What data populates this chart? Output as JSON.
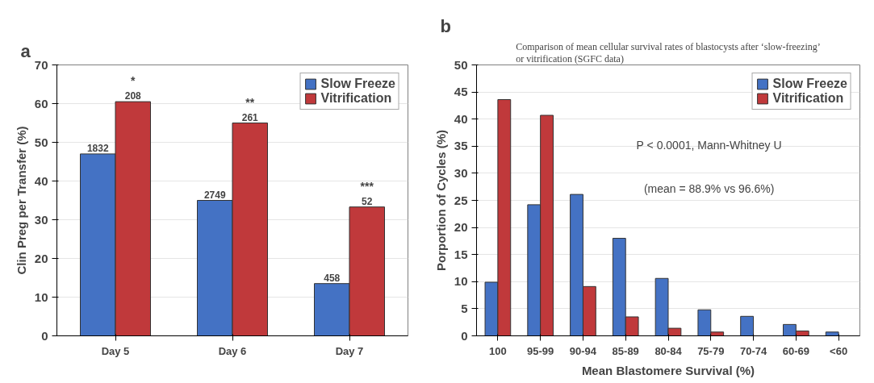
{
  "chart_data": [
    {
      "type": "bar",
      "categories": [
        "Day 5",
        "Day 6",
        "Day 7"
      ],
      "ylabel": "Clin Preg per Transfer (%)",
      "ylim": [
        0,
        70
      ],
      "yticks": [
        0,
        10,
        20,
        30,
        40,
        50,
        60,
        70
      ],
      "grid": "y",
      "legend": "top right",
      "annotations": [
        "a",
        {
          "text": "1832",
          "x": "Day 5",
          "y": 47
        },
        {
          "text": "2749",
          "x": "Day 6",
          "y": 35
        },
        {
          "text": "458",
          "x": "Day 7",
          "y": 13.5
        },
        {
          "text": "208",
          "x": "Day 5",
          "y": 60.5
        },
        {
          "text": "261",
          "x": "Day 6",
          "y": 55
        },
        {
          "text": "52",
          "x": "Day 7",
          "y": 33.3
        },
        {
          "text": "*",
          "x": "Day 5",
          "y": 60.5
        },
        {
          "text": "**",
          "x": "Day 6",
          "y": 55
        },
        {
          "text": "***",
          "x": "Day 7",
          "y": 33.3
        }
      ],
      "series": [
        {
          "name": "Slow Freeze",
          "color": "#4472c4",
          "values": [
            47,
            35,
            13.5
          ]
        },
        {
          "name": "Vitrification",
          "color": "#c0393b",
          "values": [
            60.5,
            55,
            33.3
          ]
        }
      ]
    },
    {
      "type": "bar",
      "title": "Comparison of mean cellular survival rates of blastocysts after ‘slow-freezing’ or vitrification (SGFC data)",
      "categories": [
        "100",
        "95-99",
        "90-94",
        "85-89",
        "80-84",
        "75-79",
        "70-74",
        "60-69",
        "<60"
      ],
      "xlabel": "Mean Blastomere Survival (%)",
      "ylabel": "Porportion of Cycles (%)",
      "ylim": [
        0,
        50
      ],
      "yticks": [
        0,
        5,
        10,
        15,
        20,
        25,
        30,
        35,
        40,
        45,
        50
      ],
      "grid": "y",
      "legend": "top right",
      "annotations": [
        "b",
        "P < 0.0001, Mann-Whitney U",
        "(mean = 88.9% vs 96.6%)"
      ],
      "series": [
        {
          "name": "Slow Freeze",
          "color": "#4472c4",
          "values": [
            9.9,
            24.2,
            26.1,
            18.0,
            10.6,
            4.8,
            3.6,
            2.1,
            0.7
          ]
        },
        {
          "name": "Vitrification",
          "color": "#c0393b",
          "values": [
            43.6,
            40.7,
            9.1,
            3.5,
            1.4,
            0.7,
            null,
            0.9,
            null
          ]
        }
      ]
    }
  ]
}
